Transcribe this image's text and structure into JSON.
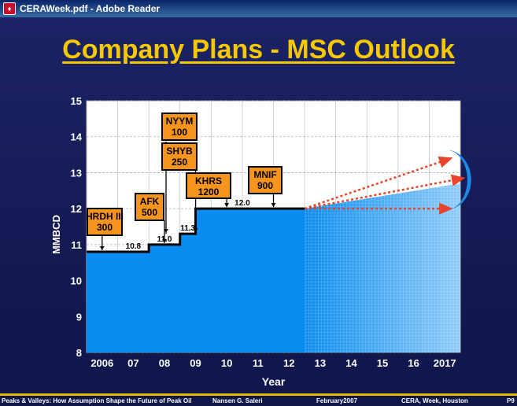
{
  "window": {
    "title": "CERAWeek.pdf - Adobe Reader"
  },
  "slide": {
    "title": "Company Plans - MSC Outlook",
    "footer": {
      "left": "Peaks & Valleys:  How Assumption Shape the Future of Peak Oil",
      "author": "Nansen G. Saleri",
      "date": "February2007",
      "event": "CERA, Week, Houston",
      "page": "P9"
    }
  },
  "chart_data": {
    "type": "area",
    "xlabel": "Year",
    "ylabel": "MMBCD",
    "ylim": [
      8,
      15
    ],
    "yticks": [
      8,
      9,
      10,
      11,
      12,
      13,
      14,
      15
    ],
    "categories": [
      "2006",
      "07",
      "08",
      "09",
      "10",
      "11",
      "12",
      "13",
      "14",
      "15",
      "16",
      "2017"
    ],
    "steps": [
      {
        "from": 2005.5,
        "to": 2007.5,
        "value": 10.8
      },
      {
        "from": 2007.5,
        "to": 2008.5,
        "value": 11.0
      },
      {
        "from": 2008.5,
        "to": 2009.0,
        "value": 11.3
      },
      {
        "from": 2009.0,
        "to": 2012.5,
        "value": 12.0
      }
    ],
    "forecast": {
      "from": 2012.5,
      "to": 2017.5,
      "start": 12.0,
      "end": 12.7
    },
    "step_labels": [
      {
        "x": 2007.0,
        "y": 10.8,
        "text": "10.8"
      },
      {
        "x": 2008.0,
        "y": 11.0,
        "text": "11.0"
      },
      {
        "x": 2008.75,
        "y": 11.3,
        "text": "11.3"
      },
      {
        "x": 2010.5,
        "y": 12.0,
        "text": "12.0"
      }
    ],
    "projects": [
      {
        "name": "HRDH III",
        "capacity": "300",
        "x": 2006.0,
        "y": 10.8
      },
      {
        "name": "AFK",
        "capacity": "500",
        "x": 2008.0,
        "y": 11.0
      },
      {
        "name": "NYYM",
        "capacity": "100",
        "x": 2008.5,
        "y": 11.3
      },
      {
        "name": "SHYB",
        "capacity": "250",
        "x": 2009.0,
        "y": 11.3
      },
      {
        "name": "KHRS",
        "capacity": "1200",
        "x": 2010.0,
        "y": 12.0
      },
      {
        "name": "MNIF",
        "capacity": "900",
        "x": 2011.5,
        "y": 12.0
      }
    ],
    "outlook_arrows": [
      {
        "start": [
          2012.5,
          12.0
        ],
        "end": [
          2017.2,
          13.4
        ]
      },
      {
        "start": [
          2012.5,
          12.0
        ],
        "end": [
          2017.6,
          12.85
        ]
      },
      {
        "start": [
          2012.5,
          12.0
        ],
        "end": [
          2017.2,
          12.0
        ]
      }
    ],
    "colors": {
      "area": "#0a8cf0",
      "forecast": "#9fd4f6",
      "step_line": "#000000",
      "project_box": "#f7941d",
      "arrow": "#e8442a",
      "crescent": "#1e88e5",
      "title": "#f5c800"
    }
  }
}
